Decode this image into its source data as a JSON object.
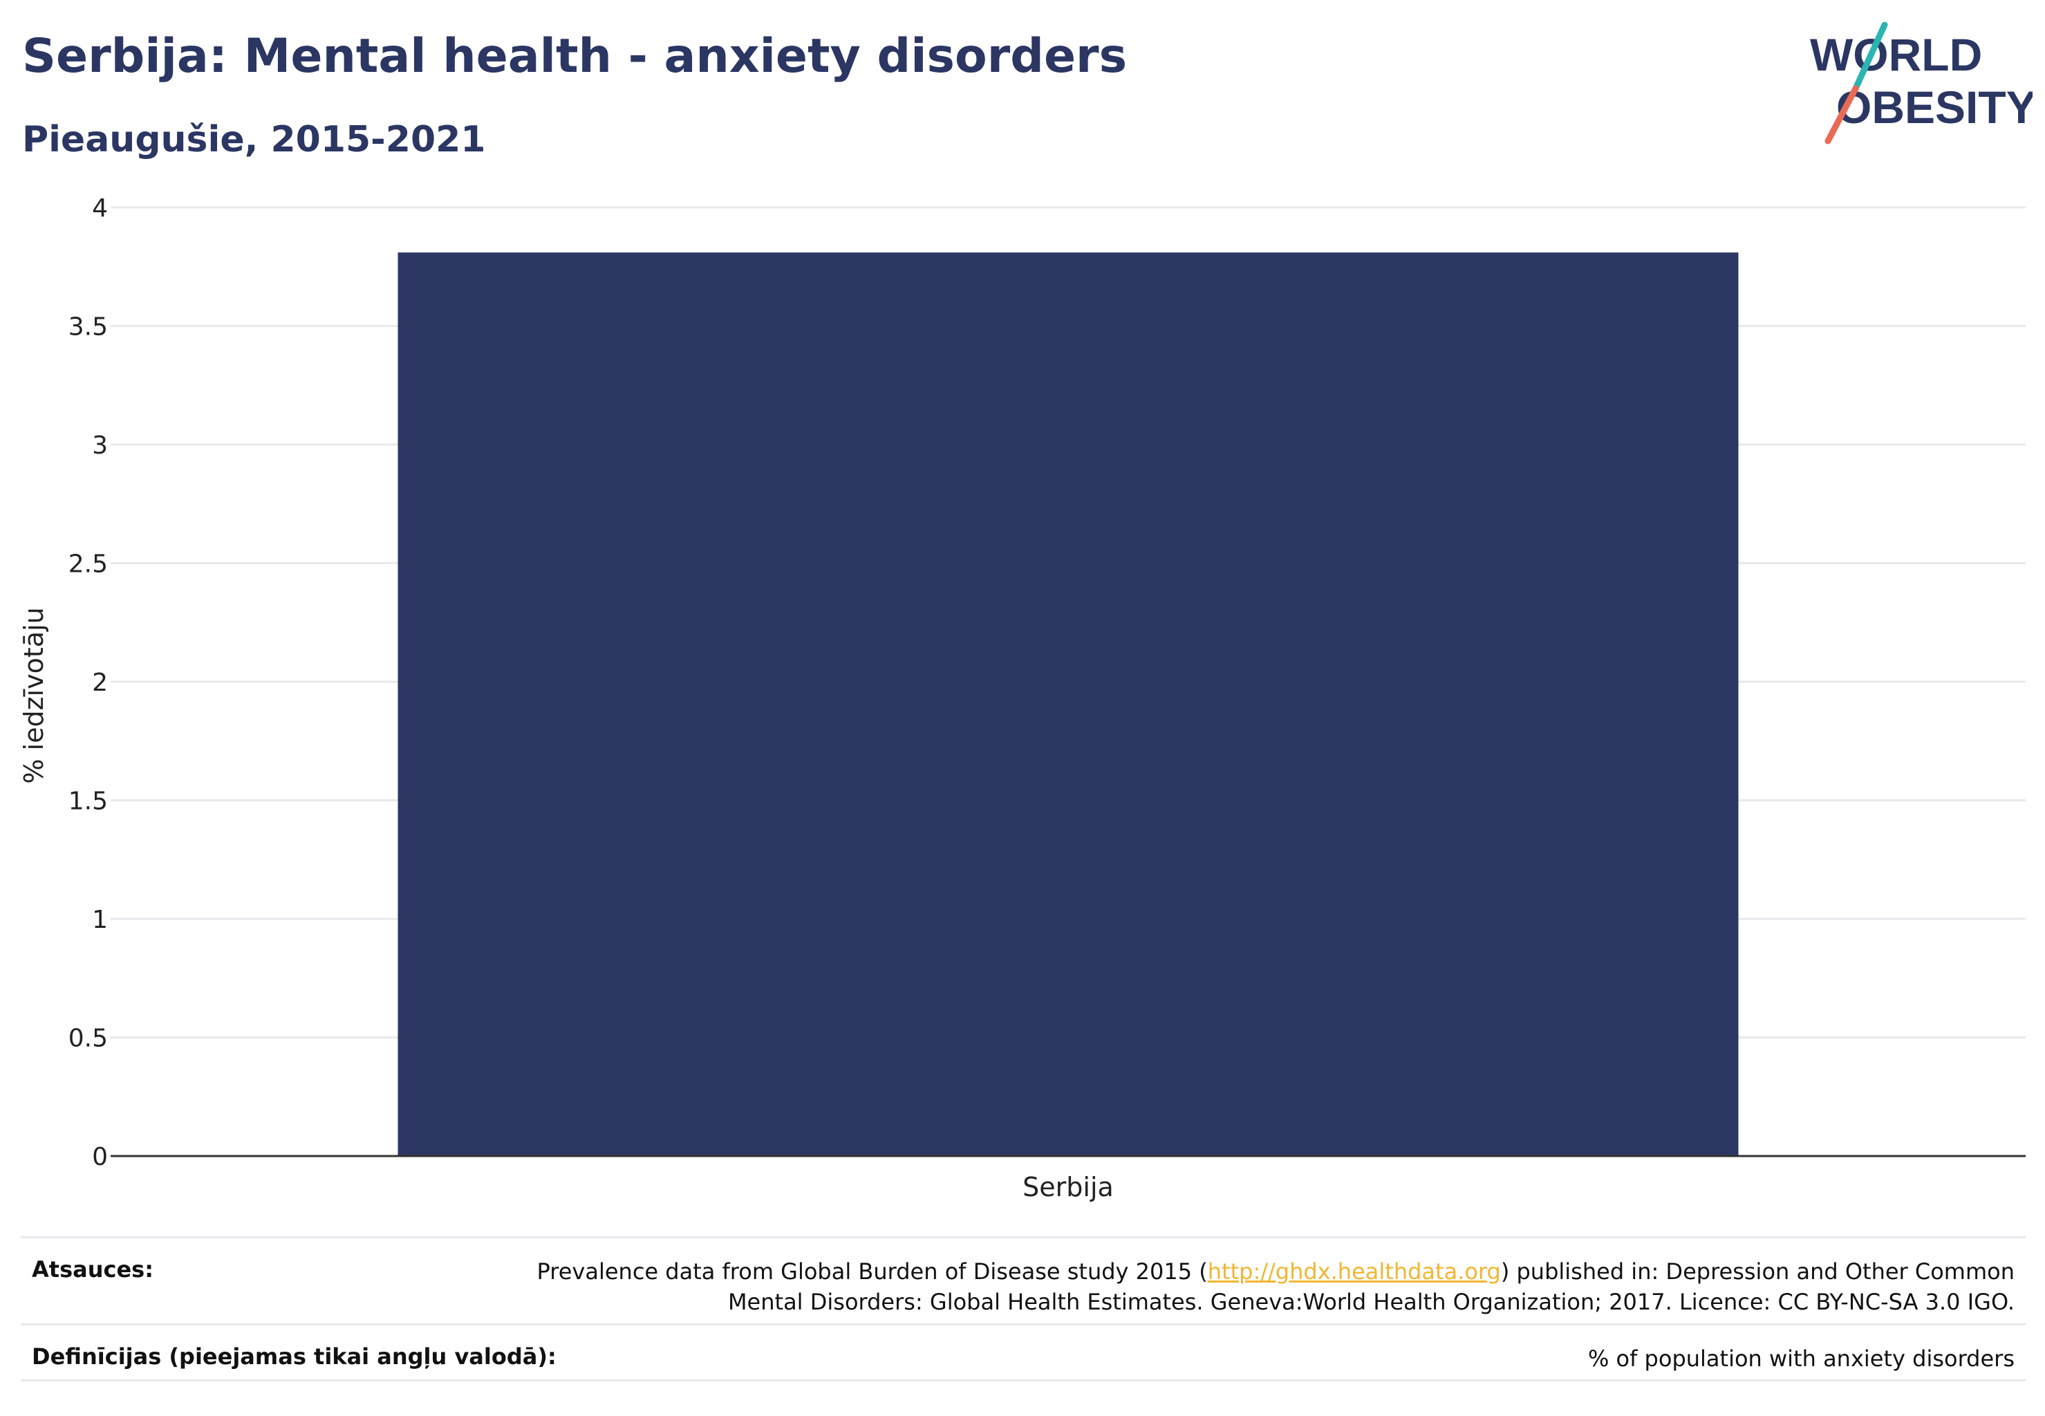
{
  "header": {
    "title": "Serbija: Mental health - anxiety disorders",
    "subtitle": "Pieaugušie, 2015-2021"
  },
  "logo": {
    "line1": "WORLD",
    "line2": "OBESITY",
    "text_color": "#2b3663",
    "slash_top_color": "#2bb5b0",
    "slash_bottom_color": "#e96a55"
  },
  "chart_data": {
    "type": "bar",
    "categories": [
      "Serbija"
    ],
    "values": [
      3.81
    ],
    "ylabel": "% iedzīvotāju",
    "ylim": [
      0,
      4
    ],
    "yticks": [
      "0",
      "0.5",
      "1",
      "1.5",
      "2",
      "2.5",
      "3",
      "3.5",
      "4"
    ],
    "grid": true,
    "bar_color": "#2b3663"
  },
  "footer": {
    "sources_label": "Atsauces:",
    "sources_text_before": "Prevalence data from Global Burden of Disease study 2015 (",
    "sources_link": "http://ghdx.healthdata.org",
    "sources_text_after": ") published in: Depression and Other Common",
    "sources_text_line2": "Mental Disorders: Global Health Estimates. Geneva:World Health Organization; 2017. Licence: CC BY-NC-SA 3.0 IGO.",
    "definitions_label": "Definīcijas (pieejamas tikai angļu valodā):",
    "definitions_text": "% of population with anxiety disorders"
  }
}
